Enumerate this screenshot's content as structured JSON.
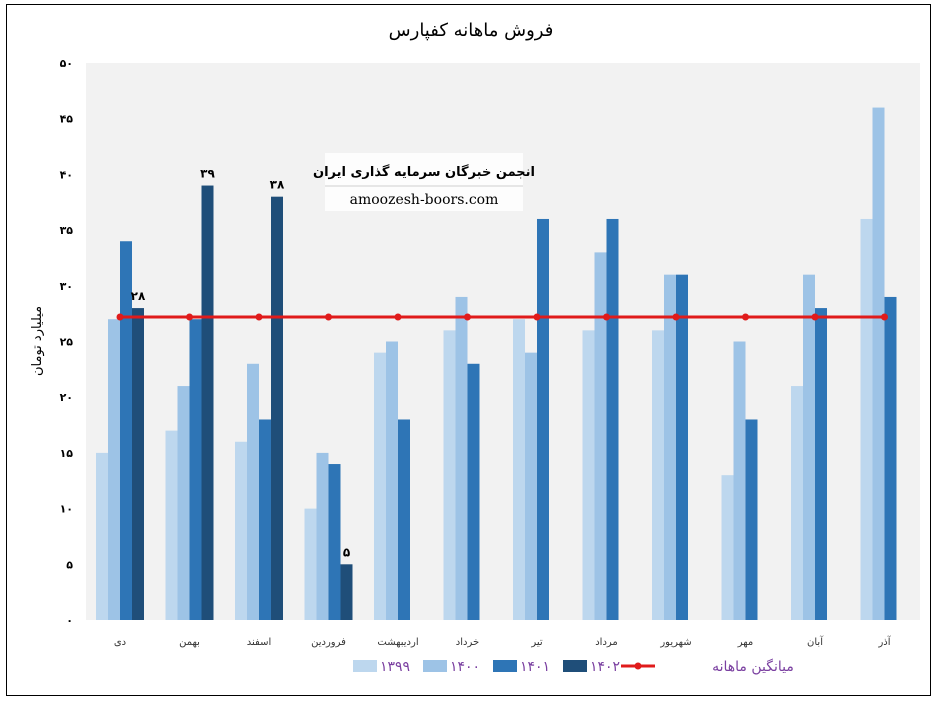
{
  "chart_data": {
    "type": "bar",
    "title": "فروش ماهانه کفپارس",
    "ylabel": "میلیارد تومان",
    "ylim": [
      0,
      50
    ],
    "yticks": [
      "۰",
      "۵",
      "۱۰",
      "۱۵",
      "۲۰",
      "۲۵",
      "۳۰",
      "۳۵",
      "۴۰",
      "۴۵",
      "۵۰"
    ],
    "grid": false,
    "legend": "bottom",
    "categories": [
      "دی",
      "بهمن",
      "اسفند",
      "فروردین",
      "اردیبهشت",
      "خرداد",
      "تیر",
      "مرداد",
      "شهریور",
      "مهر",
      "آبان",
      "آذر"
    ],
    "series": [
      {
        "name": "۱۳۹۹",
        "color": "#bdd7ee",
        "values": [
          15,
          17,
          16,
          10,
          24,
          26,
          27,
          26,
          26,
          13,
          21,
          36
        ]
      },
      {
        "name": "۱۴۰۰",
        "color": "#9dc3e6",
        "values": [
          27,
          21,
          23,
          15,
          25,
          29,
          24,
          33,
          31,
          25,
          31,
          46
        ]
      },
      {
        "name": "۱۴۰۱",
        "color": "#2e75b6",
        "values": [
          34,
          27,
          18,
          14,
          18,
          23,
          36,
          36,
          31,
          18,
          28,
          29
        ]
      },
      {
        "name": "۱۴۰۲",
        "color": "#1f4e79",
        "values": [
          28,
          39,
          38,
          5,
          null,
          null,
          null,
          null,
          null,
          null,
          null,
          null
        ]
      }
    ],
    "data_labels": [
      {
        "category_index": 0,
        "series_index": 3,
        "text": "۲۸"
      },
      {
        "category_index": 1,
        "series_index": 3,
        "text": "۳۹"
      },
      {
        "category_index": 2,
        "series_index": 3,
        "text": "۳۸"
      },
      {
        "category_index": 3,
        "series_index": 3,
        "text": "۵"
      }
    ],
    "average_line": {
      "name": "میانگین ماهانه",
      "value": 27.2,
      "color": "#e01b1b"
    }
  },
  "watermark": {
    "line1": "انجمن خبرگان سرمایه گذاری ایران",
    "line2": "amoozesh-boors.com"
  }
}
